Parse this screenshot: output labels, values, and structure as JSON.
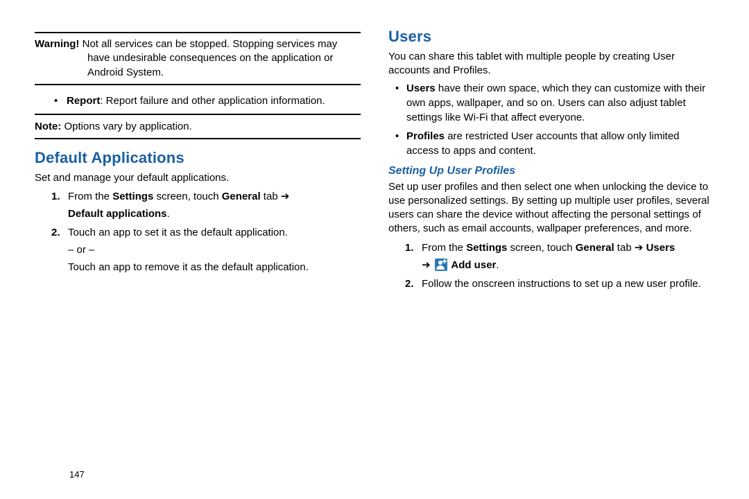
{
  "colors": {
    "heading_blue": "#1a5fa3",
    "body_text": "#000000",
    "icon_bg": "#2a7ab0",
    "background": "#ffffff"
  },
  "typography": {
    "body_fontsize": 15,
    "h2_fontsize": 22,
    "h3_fontsize": 16,
    "page_num_fontsize": 13,
    "line_height": 1.35
  },
  "left": {
    "warning_label": "Warning!",
    "warning_text": " Not all services can be stopped. Stopping services may have undesirable consequences on the application or Android System.",
    "report_label": "Report",
    "report_text": ": Report failure and other application information.",
    "note_label": "Note:",
    "note_text": " Options vary by application.",
    "h_default_apps": "Default Applications",
    "default_apps_intro": "Set and manage your default applications.",
    "step1_num": "1.",
    "step1_a": "From the ",
    "step1_b": "Settings",
    "step1_c": " screen, touch ",
    "step1_d": "General",
    "step1_e": " tab ",
    "step1_arrow": "➔",
    "step1_f": "Default applications",
    "step1_g": ".",
    "step2_num": "2.",
    "step2_text": "Touch an app to set it as the default application.",
    "step2_or": "– or –",
    "step2_alt": "Touch an app to remove it as the default application."
  },
  "right": {
    "h_users": "Users",
    "users_intro": "You can share this tablet with multiple people by creating User accounts and Profiles.",
    "b1_label": "Users",
    "b1_text": " have their own space, which they can customize with their own apps, wallpaper, and so on. Users can also adjust tablet settings like Wi-Fi that affect everyone.",
    "b2_label": "Profiles",
    "b2_text": " are restricted User accounts that allow only limited access to apps and content.",
    "h_setup_profiles": "Setting Up User Profiles",
    "profiles_intro": "Set up user profiles and then select one when unlocking the device to use personalized settings. By setting up multiple user profiles, several users can share the device without affecting the personal settings of others, such as email accounts, wallpaper preferences, and more.",
    "s1_num": "1.",
    "s1_a": "From the ",
    "s1_b": "Settings",
    "s1_c": " screen, touch ",
    "s1_d": "General",
    "s1_e": " tab ",
    "s1_arrow1": "➔",
    "s1_f": " Users ",
    "s1_arrow2": "➔",
    "s1_g": " Add user",
    "s1_h": ".",
    "s2_num": "2.",
    "s2_text": "Follow the onscreen instructions to set up a new user profile."
  },
  "page_number": "147"
}
